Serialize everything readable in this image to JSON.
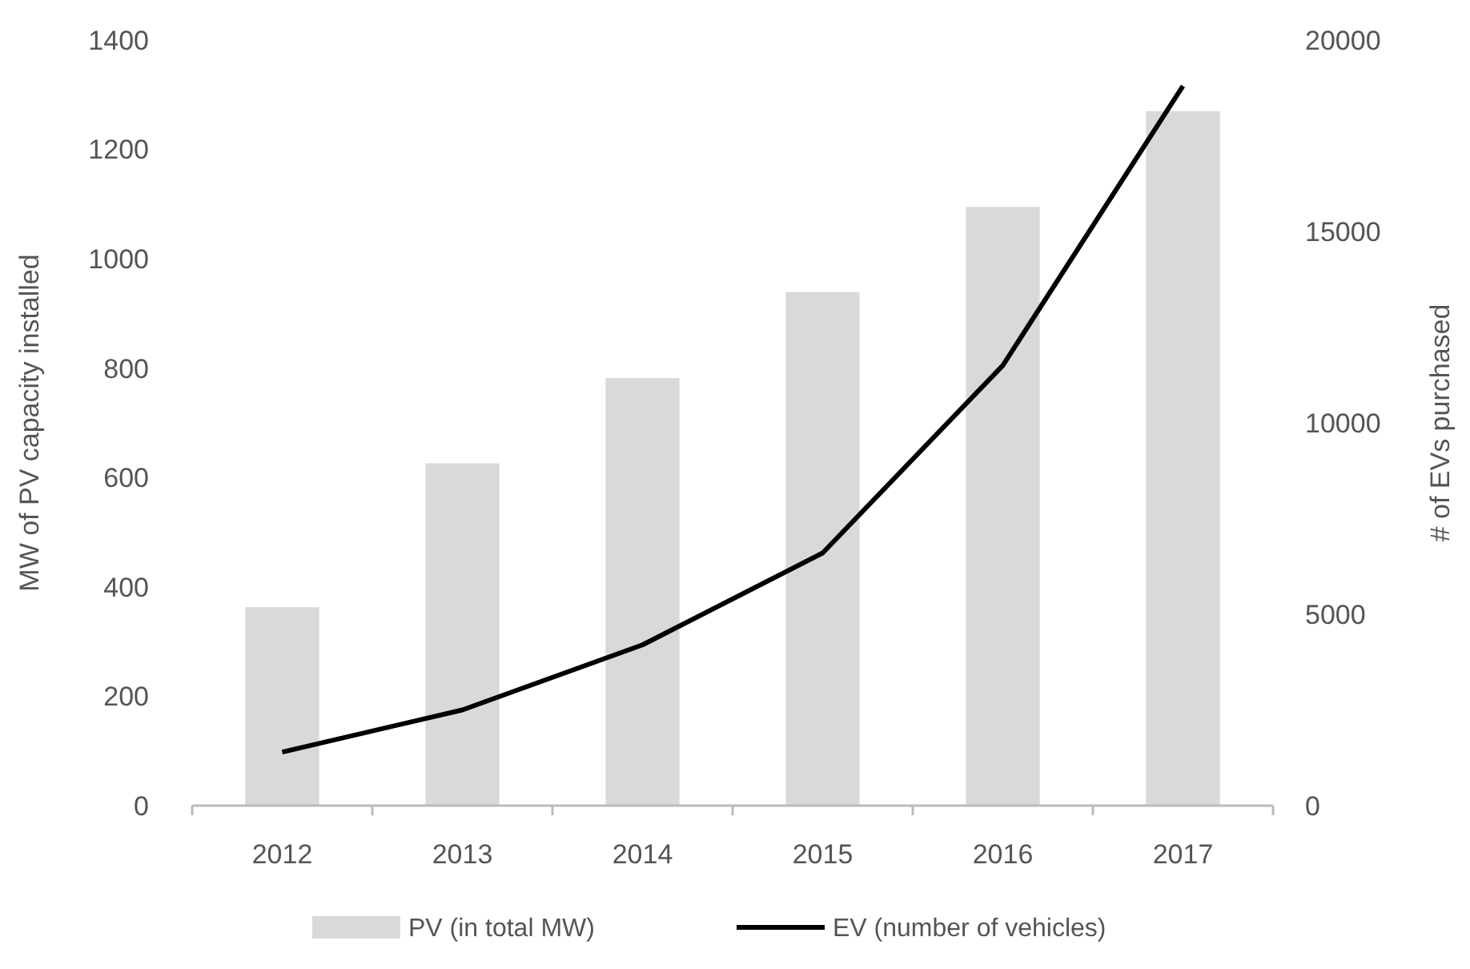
{
  "chart_data": {
    "type": "bar",
    "categories": [
      "2012",
      "2013",
      "2014",
      "2015",
      "2016",
      "2017"
    ],
    "series": [
      {
        "name": "PV (in total MW)",
        "color": "#d9d9d9",
        "values": [
          363,
          626,
          782,
          939,
          1095,
          1270
        ]
      },
      {
        "name": "EV (number of vehicles)",
        "type": "line",
        "axis": "y2",
        "color": "#000000",
        "values": [
          1400,
          2500,
          4200,
          6600,
          11500,
          18800
        ]
      }
    ],
    "ylabel": "MW of PV capacity  installed",
    "y2label": "# of EVs purchased",
    "ylim": [
      0,
      1400
    ],
    "yticks": [
      0,
      200,
      400,
      600,
      800,
      1000,
      1200,
      1400
    ],
    "y2lim": [
      0,
      20000
    ],
    "y2ticks": [
      0,
      5000,
      10000,
      15000,
      20000
    ],
    "grid": false,
    "legend": "bottom",
    "marker": "none",
    "line_style": "solid"
  }
}
